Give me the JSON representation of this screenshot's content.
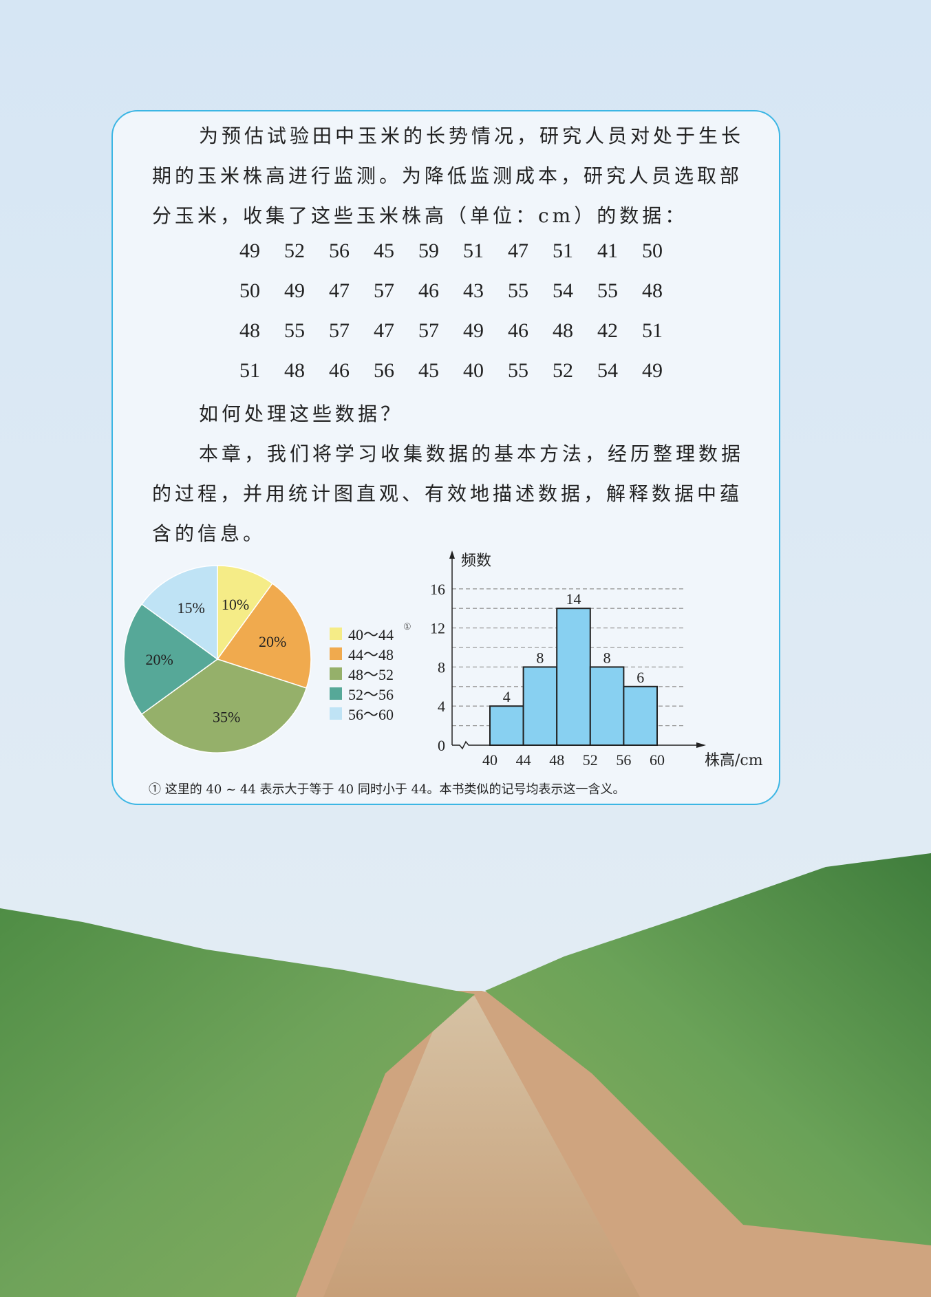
{
  "intro": {
    "lines": [
      "为预估试验田中玉米的长势情况，研究人员对处于生长",
      "期的玉米株高进行监测。为降低监测成本，研究人员选取部",
      "分玉米，收集了这些玉米株高（单位：cm）的数据："
    ]
  },
  "data_table": [
    [
      "49",
      "52",
      "56",
      "45",
      "59",
      "51",
      "47",
      "51",
      "41",
      "50"
    ],
    [
      "50",
      "49",
      "47",
      "57",
      "46",
      "43",
      "55",
      "54",
      "55",
      "48"
    ],
    [
      "48",
      "55",
      "57",
      "47",
      "57",
      "49",
      "46",
      "48",
      "42",
      "51"
    ],
    [
      "51",
      "48",
      "46",
      "56",
      "45",
      "40",
      "55",
      "52",
      "54",
      "49"
    ]
  ],
  "question": "如何处理这些数据？",
  "chapter": {
    "lines": [
      "本章，我们将学习收集数据的基本方法，经历整理数据",
      "的过程，并用统计图直观、有效地描述数据，解释数据中蕴",
      "含的信息。"
    ]
  },
  "chart_data": [
    {
      "type": "pie",
      "categories": [
        "40～44",
        "44～48",
        "48～52",
        "52～56",
        "56～60"
      ],
      "values": [
        10,
        20,
        35,
        20,
        15
      ],
      "labels": [
        "10%",
        "20%",
        "35%",
        "20%",
        "15%"
      ],
      "colors": [
        "#f5ec87",
        "#f0aa4e",
        "#95b06a",
        "#56a898",
        "#bfe3f5"
      ],
      "legend_footnote_mark": "①",
      "legend": "right"
    },
    {
      "type": "bar",
      "subtype": "histogram",
      "bins": [
        [
          40,
          44
        ],
        [
          44,
          48
        ],
        [
          48,
          52
        ],
        [
          52,
          56
        ],
        [
          56,
          60
        ]
      ],
      "values": [
        4,
        8,
        14,
        8,
        6
      ],
      "data_labels": [
        "4",
        "8",
        "14",
        "8",
        "6"
      ],
      "xticks": [
        "40",
        "44",
        "48",
        "52",
        "56",
        "60"
      ],
      "yticks": [
        "0",
        "4",
        "8",
        "12",
        "16"
      ],
      "ylabel": "频数",
      "xlabel": "株高/cm",
      "ylim": [
        0,
        16
      ],
      "grid": "dashed horizontal every 2",
      "color": "#88d0f1"
    }
  ],
  "footnote": "① 这里的 40 ~ 44 表示大于等于 40 同时小于 44。本书类似的记号均表示这一含义。"
}
